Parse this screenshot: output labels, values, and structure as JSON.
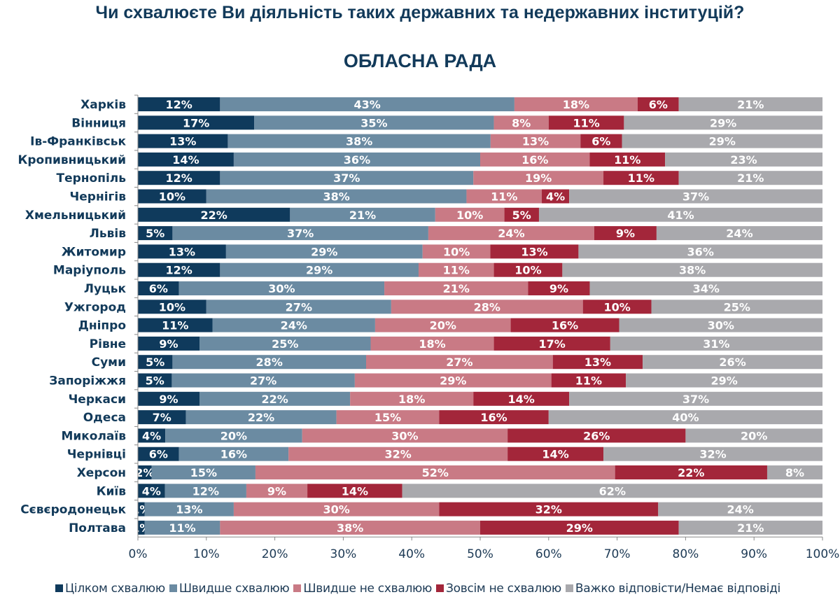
{
  "title": "Чи схвалюєте Ви діяльність таких державних та недержавних інституцій?",
  "chart_data": {
    "type": "bar",
    "orientation": "horizontal",
    "stacked": "percent",
    "title": "ОБЛАСНА РАДА",
    "xlim": [
      0,
      100
    ],
    "xticks": [
      "0%",
      "10%",
      "20%",
      "30%",
      "40%",
      "50%",
      "60%",
      "70%",
      "80%",
      "90%",
      "100%"
    ],
    "legend_position": "bottom",
    "grid": false,
    "categories": [
      "Харків",
      "Вінниця",
      "Ів-Франківськ",
      "Кропивницький",
      "Тернопіль",
      "Чернігів",
      "Хмельницький",
      "Львів",
      "Житомир",
      "Маріуполь",
      "Луцьк",
      "Ужгород",
      "Дніпро",
      "Рівне",
      "Суми",
      "Запоріжжя",
      "Черкаси",
      "Одеса",
      "Миколаїв",
      "Чернівці",
      "Херсон",
      "Київ",
      "Сєвєродонецьк",
      "Полтава"
    ],
    "series": [
      {
        "name": "Цілком схвалюю",
        "color": "#0f3a5c",
        "values": [
          12,
          17,
          13,
          14,
          12,
          10,
          22,
          5,
          13,
          12,
          6,
          10,
          11,
          9,
          5,
          5,
          9,
          7,
          4,
          6,
          2,
          4,
          1,
          1
        ]
      },
      {
        "name": "Швидше схвалюю",
        "color": "#6b8ba2",
        "values": [
          43,
          35,
          38,
          36,
          37,
          38,
          21,
          37,
          29,
          29,
          30,
          27,
          24,
          25,
          28,
          27,
          22,
          22,
          20,
          16,
          15,
          12,
          13,
          11
        ]
      },
      {
        "name": "Швидше не схвалюю",
        "color": "#c97a85",
        "values": [
          18,
          8,
          13,
          16,
          19,
          11,
          10,
          24,
          10,
          11,
          21,
          28,
          20,
          18,
          27,
          29,
          18,
          15,
          30,
          32,
          52,
          9,
          30,
          38
        ]
      },
      {
        "name": "Зовсім не схвалюю",
        "color": "#a3263a",
        "values": [
          6,
          11,
          6,
          11,
          11,
          4,
          5,
          9,
          13,
          10,
          9,
          10,
          16,
          17,
          13,
          11,
          14,
          16,
          26,
          14,
          22,
          14,
          32,
          29
        ]
      },
      {
        "name": "Важко відповісти/Немає відповіді",
        "color": "#a9a9ad",
        "values": [
          21,
          29,
          29,
          23,
          21,
          37,
          41,
          24,
          36,
          38,
          34,
          25,
          30,
          31,
          26,
          29,
          37,
          40,
          20,
          32,
          8,
          62,
          24,
          21
        ]
      }
    ]
  }
}
